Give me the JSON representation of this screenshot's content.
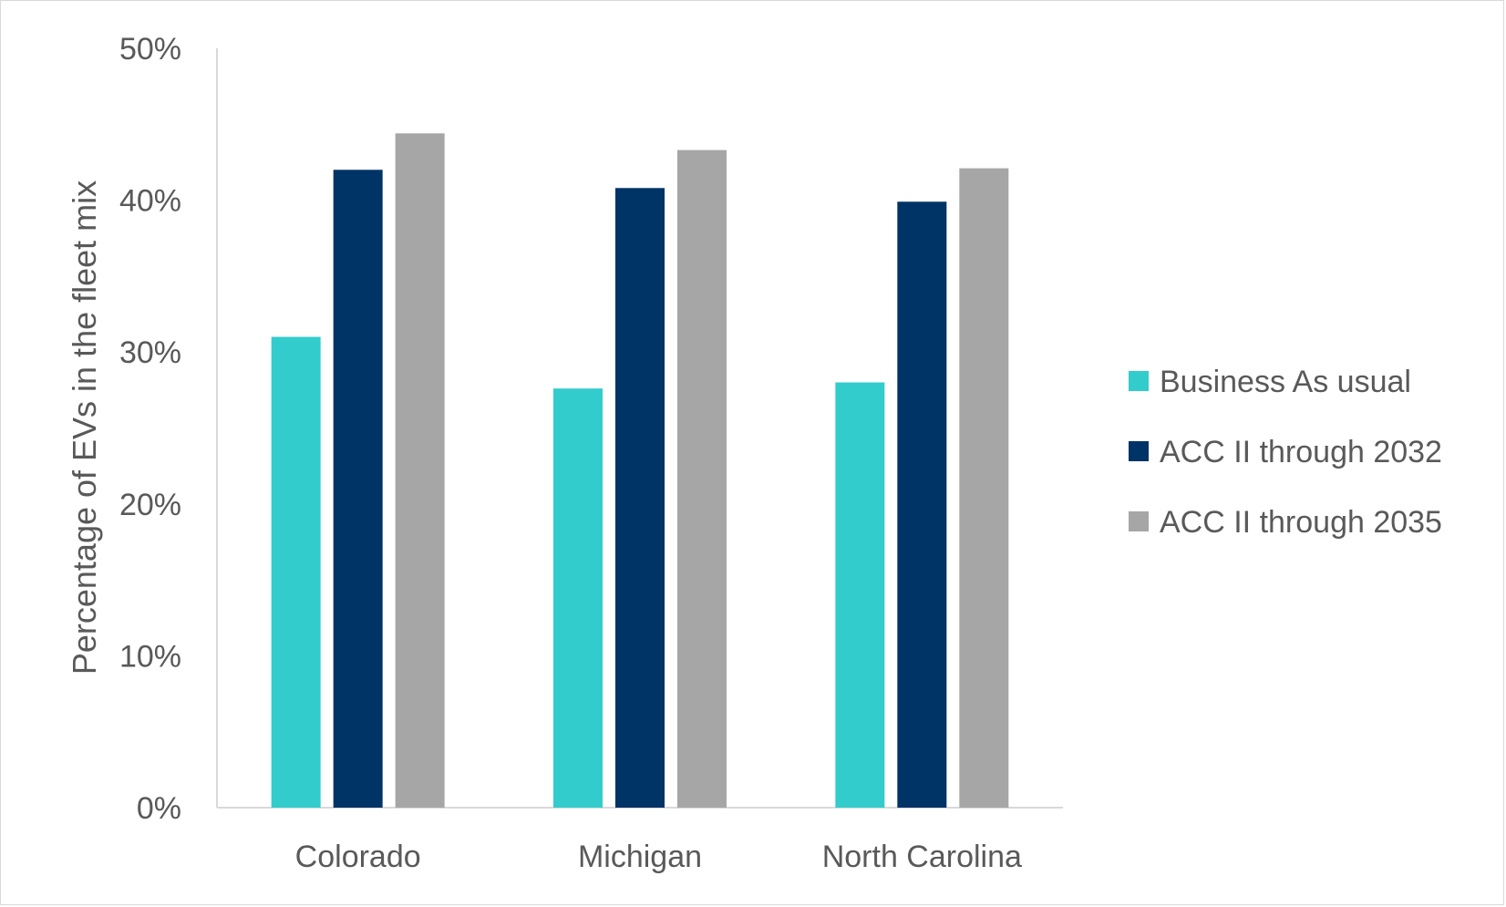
{
  "chart_data": {
    "type": "bar",
    "title": "",
    "xlabel": "",
    "ylabel": "Percentage of EVs in the fleet mix",
    "categories": [
      "Colorado",
      "Michigan",
      "North Carolina"
    ],
    "series": [
      {
        "name": "Business As usual",
        "color": "#33cccc",
        "values": [
          31,
          27.6,
          28
        ]
      },
      {
        "name": "ACC II through 2032",
        "color": "#003366",
        "values": [
          42,
          40.8,
          39.9
        ]
      },
      {
        "name": "ACC II through 2035",
        "color": "#a6a6a6",
        "values": [
          44.4,
          43.3,
          42.1
        ]
      }
    ],
    "ylim": [
      0,
      50
    ],
    "yticks": [
      0,
      10,
      20,
      30,
      40,
      50
    ],
    "ytick_labels": [
      "0%",
      "10%",
      "20%",
      "30%",
      "40%",
      "50%"
    ],
    "grid": false,
    "legend_position": "right"
  }
}
